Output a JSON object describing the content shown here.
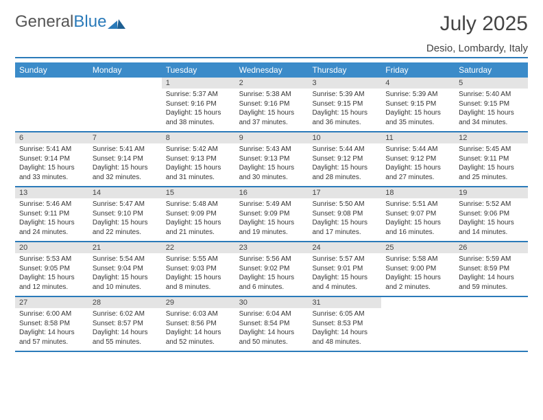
{
  "logo": {
    "text1": "General",
    "text2": "Blue"
  },
  "title": "July 2025",
  "location": "Desio, Lombardy, Italy",
  "colors": {
    "accent": "#3b8bc9",
    "accent_border": "#2a7ab9",
    "daynum_bg": "#e4e4e4",
    "text": "#333333",
    "bg": "#ffffff"
  },
  "typography": {
    "title_fontsize": 30,
    "location_fontsize": 15,
    "dow_fontsize": 12,
    "daynum_fontsize": 11,
    "body_fontsize": 10
  },
  "layout": {
    "columns": 7,
    "rows": 5
  },
  "dow": [
    "Sunday",
    "Monday",
    "Tuesday",
    "Wednesday",
    "Thursday",
    "Friday",
    "Saturday"
  ],
  "weeks": [
    [
      null,
      null,
      {
        "n": "1",
        "sr": "Sunrise: 5:37 AM",
        "ss": "Sunset: 9:16 PM",
        "d1": "Daylight: 15 hours",
        "d2": "and 38 minutes."
      },
      {
        "n": "2",
        "sr": "Sunrise: 5:38 AM",
        "ss": "Sunset: 9:16 PM",
        "d1": "Daylight: 15 hours",
        "d2": "and 37 minutes."
      },
      {
        "n": "3",
        "sr": "Sunrise: 5:39 AM",
        "ss": "Sunset: 9:15 PM",
        "d1": "Daylight: 15 hours",
        "d2": "and 36 minutes."
      },
      {
        "n": "4",
        "sr": "Sunrise: 5:39 AM",
        "ss": "Sunset: 9:15 PM",
        "d1": "Daylight: 15 hours",
        "d2": "and 35 minutes."
      },
      {
        "n": "5",
        "sr": "Sunrise: 5:40 AM",
        "ss": "Sunset: 9:15 PM",
        "d1": "Daylight: 15 hours",
        "d2": "and 34 minutes."
      }
    ],
    [
      {
        "n": "6",
        "sr": "Sunrise: 5:41 AM",
        "ss": "Sunset: 9:14 PM",
        "d1": "Daylight: 15 hours",
        "d2": "and 33 minutes."
      },
      {
        "n": "7",
        "sr": "Sunrise: 5:41 AM",
        "ss": "Sunset: 9:14 PM",
        "d1": "Daylight: 15 hours",
        "d2": "and 32 minutes."
      },
      {
        "n": "8",
        "sr": "Sunrise: 5:42 AM",
        "ss": "Sunset: 9:13 PM",
        "d1": "Daylight: 15 hours",
        "d2": "and 31 minutes."
      },
      {
        "n": "9",
        "sr": "Sunrise: 5:43 AM",
        "ss": "Sunset: 9:13 PM",
        "d1": "Daylight: 15 hours",
        "d2": "and 30 minutes."
      },
      {
        "n": "10",
        "sr": "Sunrise: 5:44 AM",
        "ss": "Sunset: 9:12 PM",
        "d1": "Daylight: 15 hours",
        "d2": "and 28 minutes."
      },
      {
        "n": "11",
        "sr": "Sunrise: 5:44 AM",
        "ss": "Sunset: 9:12 PM",
        "d1": "Daylight: 15 hours",
        "d2": "and 27 minutes."
      },
      {
        "n": "12",
        "sr": "Sunrise: 5:45 AM",
        "ss": "Sunset: 9:11 PM",
        "d1": "Daylight: 15 hours",
        "d2": "and 25 minutes."
      }
    ],
    [
      {
        "n": "13",
        "sr": "Sunrise: 5:46 AM",
        "ss": "Sunset: 9:11 PM",
        "d1": "Daylight: 15 hours",
        "d2": "and 24 minutes."
      },
      {
        "n": "14",
        "sr": "Sunrise: 5:47 AM",
        "ss": "Sunset: 9:10 PM",
        "d1": "Daylight: 15 hours",
        "d2": "and 22 minutes."
      },
      {
        "n": "15",
        "sr": "Sunrise: 5:48 AM",
        "ss": "Sunset: 9:09 PM",
        "d1": "Daylight: 15 hours",
        "d2": "and 21 minutes."
      },
      {
        "n": "16",
        "sr": "Sunrise: 5:49 AM",
        "ss": "Sunset: 9:09 PM",
        "d1": "Daylight: 15 hours",
        "d2": "and 19 minutes."
      },
      {
        "n": "17",
        "sr": "Sunrise: 5:50 AM",
        "ss": "Sunset: 9:08 PM",
        "d1": "Daylight: 15 hours",
        "d2": "and 17 minutes."
      },
      {
        "n": "18",
        "sr": "Sunrise: 5:51 AM",
        "ss": "Sunset: 9:07 PM",
        "d1": "Daylight: 15 hours",
        "d2": "and 16 minutes."
      },
      {
        "n": "19",
        "sr": "Sunrise: 5:52 AM",
        "ss": "Sunset: 9:06 PM",
        "d1": "Daylight: 15 hours",
        "d2": "and 14 minutes."
      }
    ],
    [
      {
        "n": "20",
        "sr": "Sunrise: 5:53 AM",
        "ss": "Sunset: 9:05 PM",
        "d1": "Daylight: 15 hours",
        "d2": "and 12 minutes."
      },
      {
        "n": "21",
        "sr": "Sunrise: 5:54 AM",
        "ss": "Sunset: 9:04 PM",
        "d1": "Daylight: 15 hours",
        "d2": "and 10 minutes."
      },
      {
        "n": "22",
        "sr": "Sunrise: 5:55 AM",
        "ss": "Sunset: 9:03 PM",
        "d1": "Daylight: 15 hours",
        "d2": "and 8 minutes."
      },
      {
        "n": "23",
        "sr": "Sunrise: 5:56 AM",
        "ss": "Sunset: 9:02 PM",
        "d1": "Daylight: 15 hours",
        "d2": "and 6 minutes."
      },
      {
        "n": "24",
        "sr": "Sunrise: 5:57 AM",
        "ss": "Sunset: 9:01 PM",
        "d1": "Daylight: 15 hours",
        "d2": "and 4 minutes."
      },
      {
        "n": "25",
        "sr": "Sunrise: 5:58 AM",
        "ss": "Sunset: 9:00 PM",
        "d1": "Daylight: 15 hours",
        "d2": "and 2 minutes."
      },
      {
        "n": "26",
        "sr": "Sunrise: 5:59 AM",
        "ss": "Sunset: 8:59 PM",
        "d1": "Daylight: 14 hours",
        "d2": "and 59 minutes."
      }
    ],
    [
      {
        "n": "27",
        "sr": "Sunrise: 6:00 AM",
        "ss": "Sunset: 8:58 PM",
        "d1": "Daylight: 14 hours",
        "d2": "and 57 minutes."
      },
      {
        "n": "28",
        "sr": "Sunrise: 6:02 AM",
        "ss": "Sunset: 8:57 PM",
        "d1": "Daylight: 14 hours",
        "d2": "and 55 minutes."
      },
      {
        "n": "29",
        "sr": "Sunrise: 6:03 AM",
        "ss": "Sunset: 8:56 PM",
        "d1": "Daylight: 14 hours",
        "d2": "and 52 minutes."
      },
      {
        "n": "30",
        "sr": "Sunrise: 6:04 AM",
        "ss": "Sunset: 8:54 PM",
        "d1": "Daylight: 14 hours",
        "d2": "and 50 minutes."
      },
      {
        "n": "31",
        "sr": "Sunrise: 6:05 AM",
        "ss": "Sunset: 8:53 PM",
        "d1": "Daylight: 14 hours",
        "d2": "and 48 minutes."
      },
      null,
      null
    ]
  ]
}
